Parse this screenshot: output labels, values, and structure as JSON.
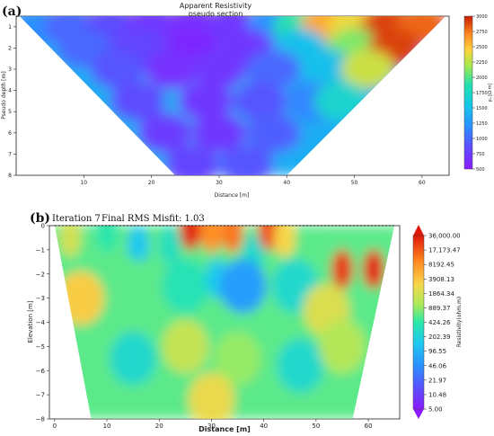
{
  "panel_a": {
    "panel_label": "(a)",
    "title_line1": "Apparent Resistivity",
    "title_line2": "pseudo section",
    "xlabel": "Distance [m]",
    "ylabel": "Pseudo depth [m]",
    "colorbar_label": "ρₐ [Ω·m]"
  },
  "panel_b": {
    "panel_label": "(b)",
    "iteration_text": "Iteration 7",
    "misfit_text": "Final RMS Misfit: 1.03",
    "xlabel": "Distance [m]",
    "ylabel": "Elevation [m]",
    "colorbar_label": "Resistivity(ohm.m)"
  },
  "chart_data": [
    {
      "type": "heatmap",
      "name": "apparent-resistivity-pseudosection",
      "title": "Apparent Resistivity",
      "subtitle": "pseudo section",
      "xlabel": "Distance [m]",
      "ylabel": "Pseudo depth [m]",
      "xlim": [
        0,
        64
      ],
      "ylim": [
        8,
        0.5
      ],
      "x_ticks": [
        10,
        20,
        30,
        40,
        50,
        60
      ],
      "y_ticks": [
        1,
        2,
        3,
        4,
        5,
        6,
        7,
        8
      ],
      "shape": "inverted-triangle",
      "colorbar": {
        "label": "ρₐ [Ω·m]",
        "min": 500,
        "max": 3000,
        "ticks": [
          500,
          750,
          1000,
          1250,
          1500,
          1750,
          2000,
          2250,
          2500,
          2750,
          3000
        ]
      },
      "cells": [
        {
          "x": 3,
          "depth": 1,
          "value": 1200
        },
        {
          "x": 8,
          "depth": 1,
          "value": 1000
        },
        {
          "x": 14,
          "depth": 1,
          "value": 850
        },
        {
          "x": 20,
          "depth": 1,
          "value": 700
        },
        {
          "x": 26,
          "depth": 1,
          "value": 650
        },
        {
          "x": 32,
          "depth": 1,
          "value": 700
        },
        {
          "x": 38,
          "depth": 1,
          "value": 1200
        },
        {
          "x": 42,
          "depth": 1,
          "value": 1900
        },
        {
          "x": 46,
          "depth": 1,
          "value": 2600
        },
        {
          "x": 50,
          "depth": 1,
          "value": 2400
        },
        {
          "x": 55,
          "depth": 1,
          "value": 2900
        },
        {
          "x": 60,
          "depth": 1,
          "value": 2800
        },
        {
          "x": 10,
          "depth": 2,
          "value": 1000
        },
        {
          "x": 18,
          "depth": 2,
          "value": 800
        },
        {
          "x": 26,
          "depth": 2,
          "value": 600
        },
        {
          "x": 34,
          "depth": 2,
          "value": 700
        },
        {
          "x": 42,
          "depth": 2,
          "value": 1500
        },
        {
          "x": 50,
          "depth": 2,
          "value": 2100
        },
        {
          "x": 56,
          "depth": 2,
          "value": 2900
        },
        {
          "x": 15,
          "depth": 3,
          "value": 900
        },
        {
          "x": 23,
          "depth": 3,
          "value": 650
        },
        {
          "x": 30,
          "depth": 3,
          "value": 700
        },
        {
          "x": 38,
          "depth": 3,
          "value": 1000
        },
        {
          "x": 46,
          "depth": 3,
          "value": 1500
        },
        {
          "x": 52,
          "depth": 3,
          "value": 2300
        },
        {
          "x": 18,
          "depth": 4.5,
          "value": 850
        },
        {
          "x": 28,
          "depth": 4.5,
          "value": 700
        },
        {
          "x": 36,
          "depth": 4.5,
          "value": 900
        },
        {
          "x": 44,
          "depth": 4.5,
          "value": 1150
        },
        {
          "x": 48,
          "depth": 4.5,
          "value": 1700
        },
        {
          "x": 22,
          "depth": 6,
          "value": 750
        },
        {
          "x": 30,
          "depth": 6,
          "value": 700
        },
        {
          "x": 38,
          "depth": 6,
          "value": 950
        },
        {
          "x": 26,
          "depth": 7.5,
          "value": 800
        },
        {
          "x": 34,
          "depth": 7.5,
          "value": 900
        }
      ]
    },
    {
      "type": "heatmap",
      "name": "inverted-resistivity-section",
      "title": "Iteration 7    Final RMS Misfit: 1.03",
      "xlabel": "Distance [m]",
      "ylabel": "Elevation [m]",
      "xlim": [
        -1,
        66
      ],
      "ylim": [
        -8,
        0
      ],
      "x_ticks": [
        0,
        10,
        20,
        30,
        40,
        50,
        60
      ],
      "y_ticks": [
        0,
        -1,
        -2,
        -3,
        -4,
        -5,
        -6,
        -7,
        -8
      ],
      "shape": "trapezoid",
      "colorbar": {
        "label": "Resistivity(ohm.m)",
        "scale": "log",
        "min": 5.0,
        "max": 36000.0,
        "ticks": [
          "36,000.00",
          "17,173.47",
          "8192.45",
          "3908.13",
          "1864.34",
          "889.37",
          "424.26",
          "202.39",
          "96.55",
          "46.06",
          "21.97",
          "10.48",
          "5.00"
        ]
      },
      "cells": [
        {
          "x": 3,
          "elev": -0.5,
          "value": 1800
        },
        {
          "x": 10,
          "elev": -0.3,
          "value": 400
        },
        {
          "x": 16,
          "elev": -0.8,
          "value": 150
        },
        {
          "x": 22,
          "elev": -0.8,
          "value": 300
        },
        {
          "x": 26,
          "elev": -0.2,
          "value": 30000
        },
        {
          "x": 30,
          "elev": -0.3,
          "value": 9000
        },
        {
          "x": 34,
          "elev": -0.3,
          "value": 12000
        },
        {
          "x": 38,
          "elev": -1.2,
          "value": 250
        },
        {
          "x": 41,
          "elev": -0.2,
          "value": 20000
        },
        {
          "x": 44,
          "elev": -0.5,
          "value": 3000
        },
        {
          "x": 50,
          "elev": -0.8,
          "value": 600
        },
        {
          "x": 55,
          "elev": -1.8,
          "value": 25000
        },
        {
          "x": 61,
          "elev": -1.8,
          "value": 30000
        },
        {
          "x": 5,
          "elev": -3.0,
          "value": 3500
        },
        {
          "x": 15,
          "elev": -2.5,
          "value": 600
        },
        {
          "x": 25,
          "elev": -2.5,
          "value": 350
        },
        {
          "x": 31,
          "elev": -2.2,
          "value": 150
        },
        {
          "x": 36,
          "elev": -2.5,
          "value": 60
        },
        {
          "x": 46,
          "elev": -2.5,
          "value": 250
        },
        {
          "x": 52,
          "elev": -3.5,
          "value": 2000
        },
        {
          "x": 15,
          "elev": -5.5,
          "value": 250
        },
        {
          "x": 25,
          "elev": -5.0,
          "value": 1500
        },
        {
          "x": 35,
          "elev": -5.5,
          "value": 900
        },
        {
          "x": 47,
          "elev": -5.8,
          "value": 250
        },
        {
          "x": 55,
          "elev": -5.0,
          "value": 1200
        },
        {
          "x": 30,
          "elev": -7.2,
          "value": 2500
        }
      ]
    }
  ]
}
